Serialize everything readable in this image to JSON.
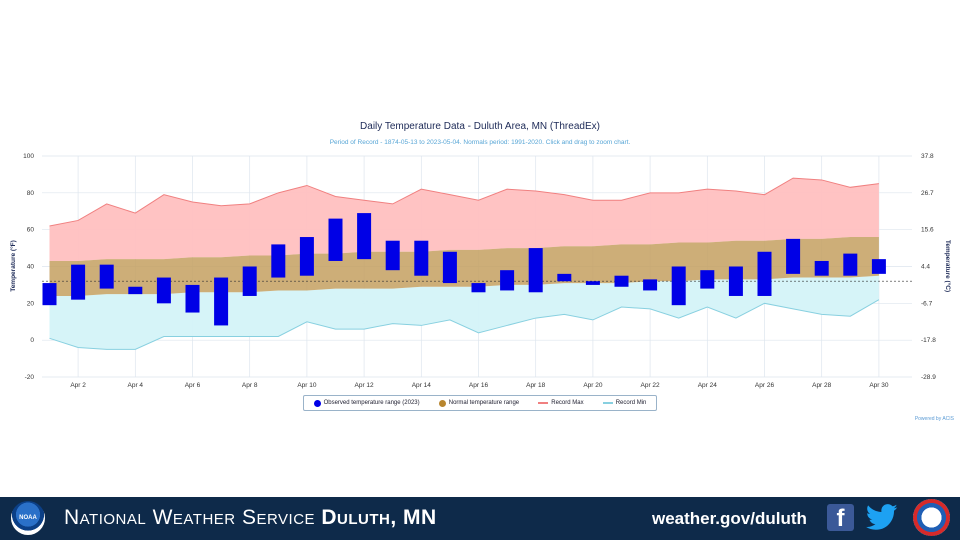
{
  "chart_data": {
    "type": "bar",
    "title": "Daily Temperature Data - Duluth Area, MN (ThreadEx)",
    "subtitle": "Period of Record - 1874-05-13 to 2023-05-04. Normals period: 1991-2020. Click and drag to zoom chart.",
    "ylabel": "Temperature (°F)",
    "ylabel_right": "Temperature (°C)",
    "ylim": [
      -20,
      100
    ],
    "y_ticks": [
      -20,
      0,
      20,
      40,
      60,
      80,
      100
    ],
    "y_ticks_right": [
      "-28.9",
      "-17.8",
      "-6.7",
      "4.4",
      "15.6",
      "26.7",
      "37.8"
    ],
    "days": [
      1,
      2,
      3,
      4,
      5,
      6,
      7,
      8,
      9,
      10,
      11,
      12,
      13,
      14,
      15,
      16,
      17,
      18,
      19,
      20,
      21,
      22,
      23,
      24,
      25,
      26,
      27,
      28,
      29,
      30
    ],
    "x_tick_labels": [
      "Apr 2",
      "Apr 4",
      "Apr 6",
      "Apr 8",
      "Apr 10",
      "Apr 12",
      "Apr 14",
      "Apr 16",
      "Apr 18",
      "Apr 20",
      "Apr 22",
      "Apr 24",
      "Apr 26",
      "Apr 28",
      "Apr 30"
    ],
    "x_tick_days": [
      2,
      4,
      6,
      8,
      10,
      12,
      14,
      16,
      18,
      20,
      22,
      24,
      26,
      28,
      30
    ],
    "freezing_line": 32,
    "series": [
      {
        "name": "Observed temperature range (2023)",
        "kind": "range_bar",
        "color": "#0000e6",
        "low": [
          19,
          22,
          28,
          25,
          20,
          15,
          8,
          24,
          34,
          35,
          43,
          44,
          38,
          35,
          31,
          26,
          27,
          26,
          32,
          30,
          29,
          27,
          19,
          28,
          24,
          24,
          36,
          35,
          35,
          36
        ],
        "high": [
          31,
          41,
          41,
          29,
          34,
          30,
          34,
          40,
          52,
          56,
          66,
          69,
          54,
          54,
          48,
          31,
          38,
          50,
          36,
          32,
          35,
          33,
          40,
          38,
          40,
          48,
          55,
          43,
          47,
          44
        ]
      },
      {
        "name": "Normal temperature range",
        "kind": "band",
        "color": "#c4a060",
        "low": [
          24,
          24,
          25,
          25,
          25,
          26,
          26,
          26,
          27,
          27,
          28,
          28,
          28,
          29,
          29,
          29,
          30,
          30,
          31,
          31,
          31,
          32,
          32,
          33,
          33,
          33,
          34,
          34,
          34,
          35
        ],
        "high": [
          43,
          43,
          44,
          44,
          44,
          45,
          45,
          46,
          46,
          47,
          47,
          48,
          48,
          48,
          49,
          49,
          50,
          50,
          51,
          51,
          52,
          52,
          53,
          53,
          54,
          54,
          55,
          55,
          56,
          56
        ]
      },
      {
        "name": "Record Max",
        "kind": "line",
        "color": "#f08080",
        "values": [
          62,
          65,
          74,
          69,
          79,
          75,
          73,
          74,
          80,
          84,
          78,
          76,
          74,
          82,
          79,
          76,
          82,
          81,
          79,
          76,
          76,
          80,
          80,
          82,
          81,
          79,
          88,
          87,
          83,
          85
        ]
      },
      {
        "name": "Record Min",
        "kind": "line",
        "color": "#88d0e0",
        "values": [
          1,
          -4,
          -5,
          -5,
          2,
          2,
          2,
          2,
          2,
          10,
          6,
          6,
          9,
          8,
          11,
          4,
          8,
          12,
          14,
          11,
          18,
          17,
          12,
          18,
          12,
          20,
          17,
          14,
          13,
          22
        ]
      }
    ]
  },
  "credit": "Powered by ACIS",
  "footer": {
    "org_prefix": "National Weather Service",
    "org_office": "Duluth, MN",
    "url": "weather.gov/duluth",
    "noaa_logo_text": "NOAA",
    "facebook_glyph": "f"
  }
}
